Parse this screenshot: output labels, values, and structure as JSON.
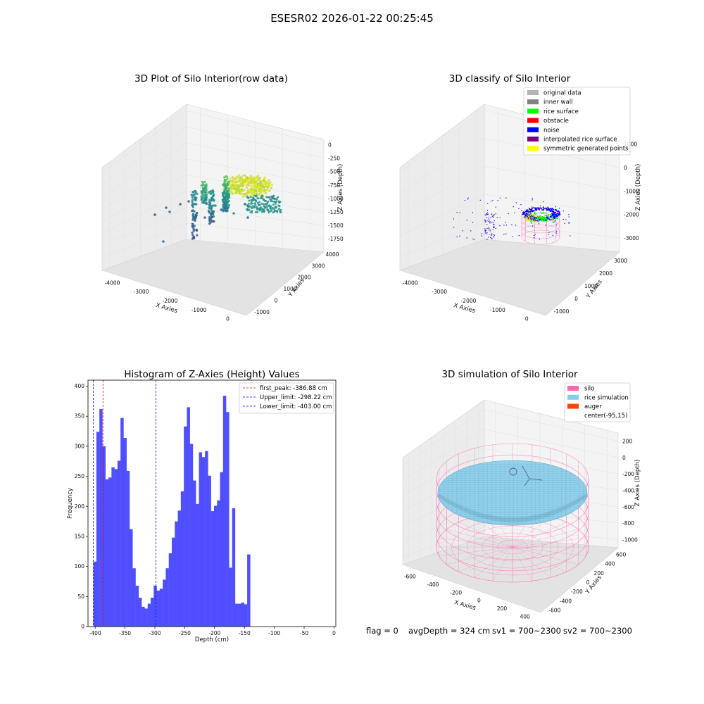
{
  "figure": {
    "suptitle": "ESESR02 2026-01-22 00:25:45",
    "footer": {
      "flag": "flag = 0",
      "avg_depth": "avgDepth = 324 cm",
      "sv1": "sv1 = 700~2300",
      "sv2": "sv2 = 700~2300"
    }
  },
  "colors": {
    "histogram_bars": "#4f4fff",
    "first_peak": "#ff0000",
    "limits": "#0000ff",
    "silo": "#ff69b4",
    "rice_simulation": "#87ceeb",
    "auger": "#ff4500"
  },
  "chart_data": [
    {
      "type": "scatter3d",
      "title": "3D Plot of Silo Interior(row data)",
      "xlabel": "X Axies",
      "ylabel": "Y Axies",
      "zlabel": "Z Axies (Depth)",
      "xlim": [
        -4500,
        500
      ],
      "ylim": [
        -1500,
        4000
      ],
      "zlim": [
        -2000,
        100
      ],
      "xticks": [
        -4000,
        -3000,
        -2000,
        -1000,
        0
      ],
      "yticks": [
        -1000,
        0,
        1000,
        2000,
        3000,
        4000
      ],
      "zticks": [
        0,
        -250,
        -500,
        -750,
        -1000,
        -1250,
        -1500,
        -1750
      ],
      "colormap": "viridis"
    },
    {
      "type": "scatter3d",
      "title": "3D classify of Silo Interior",
      "xlabel": "X Axies",
      "ylabel": "Y Axies",
      "zlabel": "Z Axies (Depth)",
      "xlim": [
        -4500,
        500
      ],
      "ylim": [
        -1500,
        3500
      ],
      "zlim": [
        -3600,
        1200
      ],
      "xticks": [
        -4000,
        -3000,
        -2000,
        -1000,
        0
      ],
      "yticks": [
        -1000,
        0,
        1000,
        2000,
        3000
      ],
      "zticks": [
        1000,
        0,
        -1000,
        -2000,
        -3000
      ],
      "legend": [
        {
          "label": "original data",
          "color": "#b3b3b3"
        },
        {
          "label": "inner wall",
          "color": "#808080"
        },
        {
          "label": "rice surface",
          "color": "#00ff00"
        },
        {
          "label": "obstacle",
          "color": "#ff0000"
        },
        {
          "label": "noise",
          "color": "#0000ff"
        },
        {
          "label": "interpolated rice surface",
          "color": "#800080"
        },
        {
          "label": "symmetric generated points",
          "color": "#ffff00"
        }
      ],
      "legend_position": "upper-right"
    },
    {
      "type": "bar",
      "title": "Histogram of Z-Axies (Height) Values",
      "xlabel": "Depth (cm)",
      "ylabel": "Frequency",
      "xlim": [
        -412,
        3
      ],
      "ylim": [
        0,
        410
      ],
      "xticks": [
        -400,
        -350,
        -300,
        -250,
        -200,
        -150,
        -100,
        -50,
        0
      ],
      "yticks": [
        0,
        50,
        100,
        150,
        200,
        250,
        300,
        350,
        400
      ],
      "bin_start": -403,
      "bin_width": 5.05,
      "values": [
        108,
        324,
        362,
        300,
        245,
        248,
        265,
        262,
        276,
        347,
        314,
        259,
        162,
        97,
        68,
        48,
        33,
        30,
        38,
        48,
        68,
        60,
        63,
        78,
        97,
        122,
        148,
        175,
        193,
        225,
        333,
        365,
        304,
        243,
        204,
        290,
        282,
        292,
        251,
        192,
        201,
        210,
        257,
        384,
        357,
        98,
        197,
        38,
        38,
        40,
        37,
        120
      ],
      "lines": [
        {
          "label": "first_peak: -386.88 cm",
          "x": -386.88,
          "color": "#ff0000"
        },
        {
          "label": "Upper_limit: -298.22 cm",
          "x": -298.22,
          "color": "#0000ff"
        },
        {
          "label": "Lower_limit: -403.00 cm",
          "x": -403.0,
          "color": "#0000ff"
        }
      ],
      "legend_position": "upper-right"
    },
    {
      "type": "surface3d",
      "title": "3D simulation of Silo Interior",
      "xlabel": "X Axies",
      "ylabel": "Y Axies",
      "zlabel": "Z Axies (Depth)",
      "xlim": [
        -700,
        500
      ],
      "ylim": [
        -700,
        700
      ],
      "zlim": [
        -1100,
        300
      ],
      "xticks": [
        -600,
        -400,
        -200,
        0,
        200,
        400
      ],
      "yticks": [
        600,
        400,
        200,
        0,
        -200,
        -400,
        -600
      ],
      "zticks": [
        200,
        0,
        -200,
        -400,
        -600,
        -800,
        -1000
      ],
      "legend": [
        {
          "label": "silo",
          "color": "#ff69b4"
        },
        {
          "label": "rice simulation",
          "color": "#87ceeb"
        },
        {
          "label": "auger",
          "color": "#ff4500"
        },
        {
          "label": "center(-95,15)",
          "color": ""
        }
      ],
      "legend_position": "upper-right"
    }
  ]
}
